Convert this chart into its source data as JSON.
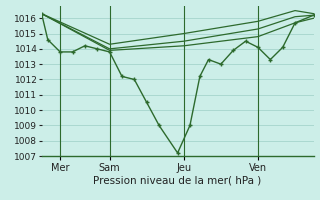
{
  "title": "Pression niveau de la mer( hPa )",
  "bg_color": "#cceee8",
  "grid_color": "#aad8d0",
  "line_color": "#2d6a2d",
  "xlim": [
    0,
    22
  ],
  "ylim": [
    1007,
    1016.8
  ],
  "yticks": [
    1007,
    1008,
    1009,
    1010,
    1011,
    1012,
    1013,
    1014,
    1015,
    1016
  ],
  "day_lines": [
    1.5,
    5.5,
    11.5,
    17.5
  ],
  "day_labels": [
    "Mer",
    "Sam",
    "Jeu",
    "Ven"
  ],
  "series_main_x": [
    0,
    0.5,
    1.5,
    2.5,
    3.5,
    4.5,
    5.5,
    6.5,
    7.5,
    8.5,
    9.5,
    11.0,
    12.0,
    12.8,
    13.5,
    14.5,
    15.5,
    16.5,
    17.5,
    18.5,
    19.5,
    20.5,
    22
  ],
  "series_main_y": [
    1016.3,
    1014.6,
    1013.8,
    1013.8,
    1014.2,
    1014.0,
    1013.8,
    1012.2,
    1012.0,
    1010.5,
    1009.0,
    1007.2,
    1009.0,
    1012.2,
    1013.3,
    1013.0,
    1013.9,
    1014.5,
    1014.1,
    1013.3,
    1014.1,
    1015.7,
    1016.2
  ],
  "series_upper_x": [
    0,
    5.5,
    11.5,
    17.5,
    20.5,
    22
  ],
  "series_upper_y": [
    1016.3,
    1014.3,
    1015.0,
    1015.8,
    1016.5,
    1016.3
  ],
  "series_mid_x": [
    0,
    5.5,
    11.5,
    17.5,
    20.5,
    22
  ],
  "series_mid_y": [
    1016.3,
    1014.0,
    1014.5,
    1015.3,
    1016.1,
    1016.2
  ],
  "series_lower_x": [
    0,
    5.5,
    11.5,
    17.5,
    20.5,
    22
  ],
  "series_lower_y": [
    1016.3,
    1013.9,
    1014.2,
    1014.8,
    1015.7,
    1016.0
  ]
}
